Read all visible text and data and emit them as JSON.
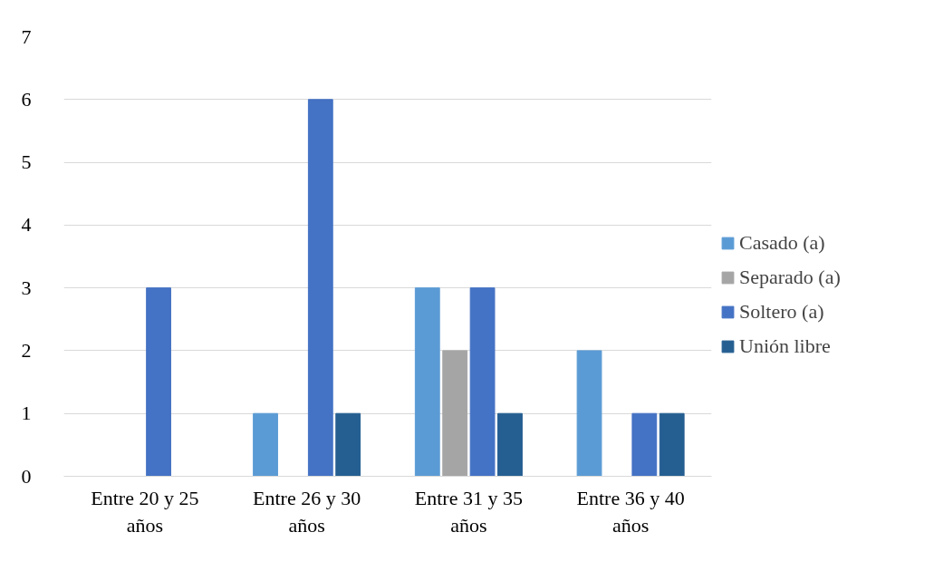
{
  "chart_data": {
    "type": "bar",
    "categories": [
      "Entre 20 y 25 años",
      "Entre 26 y 30 años",
      "Entre 31 y 35 años",
      "Entre 36 y 40 años"
    ],
    "series": [
      {
        "name": "Casado (a)",
        "color": "#5b9bd5",
        "values": [
          0,
          1,
          3,
          2
        ]
      },
      {
        "name": "Separado (a)",
        "color": "#a5a5a5",
        "values": [
          0,
          0,
          2,
          0
        ]
      },
      {
        "name": "Soltero (a)",
        "color": "#4472c4",
        "values": [
          3,
          6,
          3,
          1
        ]
      },
      {
        "name": "Unión libre",
        "color": "#255e91",
        "values": [
          0,
          1,
          1,
          1
        ]
      }
    ],
    "ylim": [
      0,
      7
    ],
    "yticks": [
      0,
      1,
      2,
      3,
      4,
      5,
      6,
      7
    ],
    "grid": "y",
    "legend": "right"
  }
}
